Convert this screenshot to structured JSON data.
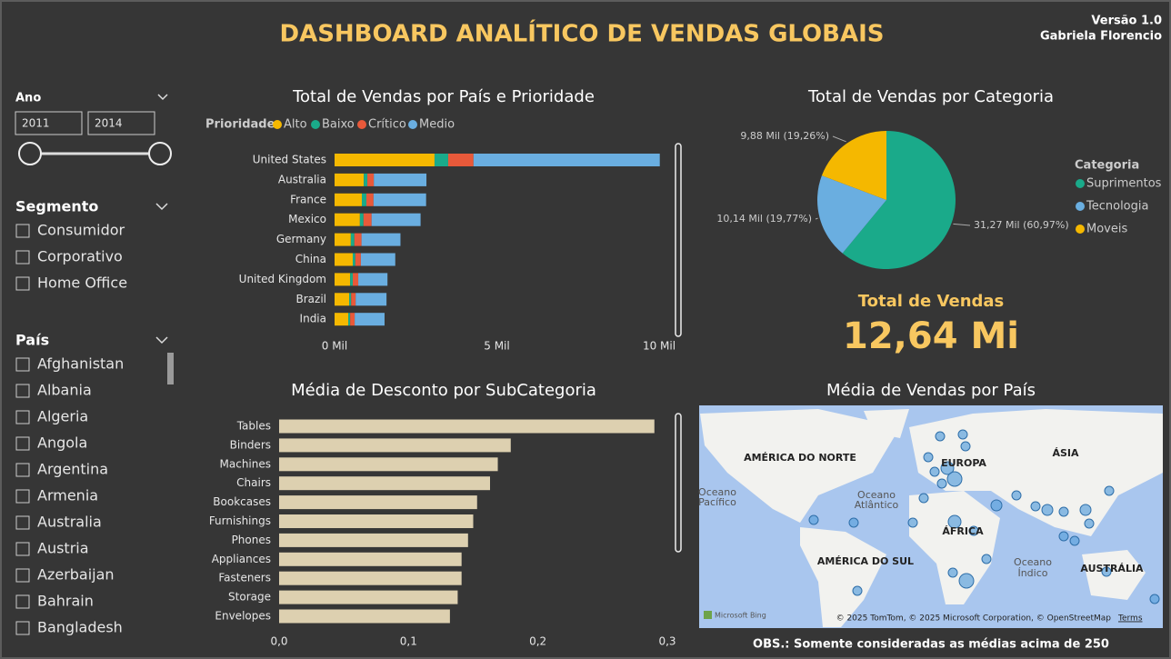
{
  "header": {
    "title": "DASHBOARD ANALÍTICO DE VENDAS GLOBAIS",
    "version": "Versão 1.0",
    "author": "Gabriela Florencio"
  },
  "filters": {
    "year": {
      "label": "Ano",
      "from": "2011",
      "to": "2014"
    },
    "segment": {
      "label": "Segmento",
      "options": [
        "Consumidor",
        "Corporativo",
        "Home Office"
      ]
    },
    "country": {
      "label": "País",
      "options": [
        "Afghanistan",
        "Albania",
        "Algeria",
        "Angola",
        "Argentina",
        "Armenia",
        "Australia",
        "Austria",
        "Azerbaijan",
        "Bahrain",
        "Bangladesh"
      ]
    }
  },
  "chart_data": [
    {
      "type": "stacked-bar",
      "title": "Total de Vendas por País e Prioridade",
      "legend_title": "Prioridade",
      "categories": [
        "United States",
        "Australia",
        "France",
        "Mexico",
        "Germany",
        "China",
        "United Kingdom",
        "Brazil",
        "India"
      ],
      "series": [
        {
          "name": "Alto",
          "color": "#f5b800",
          "values": [
            3.08,
            0.9,
            0.84,
            0.78,
            0.5,
            0.56,
            0.48,
            0.45,
            0.42
          ]
        },
        {
          "name": "Baixo",
          "color": "#1aaa8a",
          "values": [
            0.42,
            0.11,
            0.14,
            0.11,
            0.11,
            0.08,
            0.08,
            0.06,
            0.06
          ]
        },
        {
          "name": "Crítico",
          "color": "#e8593a",
          "values": [
            0.78,
            0.2,
            0.22,
            0.25,
            0.22,
            0.17,
            0.17,
            0.14,
            0.14
          ]
        },
        {
          "name": "Medio",
          "color": "#6aaee0",
          "values": [
            5.74,
            1.62,
            1.62,
            1.51,
            1.2,
            1.06,
            0.9,
            0.95,
            0.92
          ]
        }
      ],
      "xlim": [
        0,
        10
      ],
      "xticks": [
        {
          "value": 0,
          "label": "0 Mil"
        },
        {
          "value": 5,
          "label": "5 Mil"
        },
        {
          "value": 10,
          "label": "10 Mil"
        }
      ]
    },
    {
      "type": "pie",
      "title": "Total de Vendas por Categoria",
      "legend_title": "Categoria",
      "categories": [
        "Suprimentos",
        "Tecnologia",
        "Moveis"
      ],
      "values": [
        60.97,
        19.77,
        19.26
      ],
      "value_labels": [
        "31,27 Mil (60,97%)",
        "10,14 Mil (19,77%)",
        "9,88 Mil (19,26%)"
      ],
      "colors": [
        "#1aaa8a",
        "#6aaee0",
        "#f5b800"
      ]
    },
    {
      "type": "bar",
      "title": "Média de Desconto por SubCategoria",
      "categories": [
        "Tables",
        "Binders",
        "Machines",
        "Chairs",
        "Bookcases",
        "Furnishings",
        "Phones",
        "Appliances",
        "Fasteners",
        "Storage",
        "Envelopes"
      ],
      "values": [
        0.29,
        0.179,
        0.169,
        0.163,
        0.153,
        0.15,
        0.146,
        0.141,
        0.141,
        0.138,
        0.132
      ],
      "color": "#ddd0b0",
      "xlim": [
        0,
        0.3
      ],
      "xticks": [
        {
          "value": 0,
          "label": "0,0"
        },
        {
          "value": 0.1,
          "label": "0,1"
        },
        {
          "value": 0.2,
          "label": "0,2"
        },
        {
          "value": 0.3,
          "label": "0,3"
        }
      ]
    }
  ],
  "kpi": {
    "label": "Total de Vendas",
    "value": "12,64 Mi"
  },
  "map": {
    "title": "Média de Vendas por País",
    "labels": [
      "AMÉRICA DO NORTE",
      "EUROPA",
      "ÁSIA",
      "Oceano",
      "Pacífico",
      "Oceano",
      "Atlântico",
      "ÁFRICA",
      "AMÉRICA DO SUL",
      "Oceano",
      "Índico",
      "AUSTRÁLIA"
    ],
    "attribution": "© 2025 TomTom, © 2025 Microsoft Corporation, © OpenStreetMap",
    "terms": "Terms",
    "brand": "Microsoft Bing"
  },
  "note": "OBS.: Somente consideradas as médias acima de 250"
}
